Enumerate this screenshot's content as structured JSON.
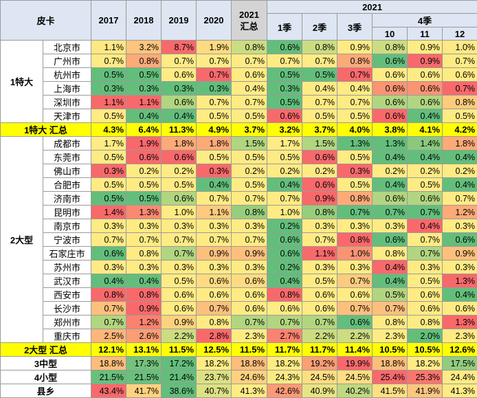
{
  "chart_data": {
    "type": "table",
    "header": {
      "corner": "皮卡",
      "years": [
        "2017",
        "2018",
        "2019",
        "2020"
      ],
      "summary_label": [
        "2021",
        "汇总"
      ],
      "top_2021": "2021",
      "quarters": [
        "1季",
        "2季",
        "3季"
      ],
      "q4": "4季",
      "months": [
        "10",
        "11",
        "12"
      ]
    },
    "groups": [
      {
        "name": "1特大",
        "rows": [
          {
            "city": "北京市",
            "values": [
              "1.1%",
              "3.2%",
              "8.7%",
              "1.9%",
              "0.8%",
              "0.6%",
              "0.8%",
              "0.9%",
              "0.8%",
              "0.9%",
              "1.0%"
            ]
          },
          {
            "city": "广州市",
            "values": [
              "0.7%",
              "0.8%",
              "0.7%",
              "0.7%",
              "0.7%",
              "0.7%",
              "0.7%",
              "0.8%",
              "0.6%",
              "0.9%",
              "0.7%"
            ]
          },
          {
            "city": "杭州市",
            "values": [
              "0.5%",
              "0.5%",
              "0.6%",
              "0.7%",
              "0.6%",
              "0.5%",
              "0.5%",
              "0.7%",
              "0.6%",
              "0.6%",
              "0.6%"
            ]
          },
          {
            "city": "上海市",
            "values": [
              "0.3%",
              "0.3%",
              "0.3%",
              "0.3%",
              "0.4%",
              "0.3%",
              "0.4%",
              "0.4%",
              "0.6%",
              "0.6%",
              "0.7%"
            ]
          },
          {
            "city": "深圳市",
            "values": [
              "1.1%",
              "1.1%",
              "0.6%",
              "0.7%",
              "0.7%",
              "0.5%",
              "0.7%",
              "0.7%",
              "0.6%",
              "0.6%",
              "0.8%"
            ]
          },
          {
            "city": "天津市",
            "values": [
              "0.5%",
              "0.4%",
              "0.4%",
              "0.5%",
              "0.5%",
              "0.6%",
              "0.5%",
              "0.5%",
              "0.6%",
              "0.4%",
              "0.5%"
            ]
          }
        ],
        "subtotal": {
          "label": "1特大 汇总",
          "values": [
            "4.3%",
            "6.4%",
            "11.3%",
            "4.9%",
            "3.7%",
            "3.2%",
            "3.7%",
            "4.0%",
            "3.8%",
            "4.1%",
            "4.2%"
          ]
        }
      },
      {
        "name": "2大型",
        "rows": [
          {
            "city": "成都市",
            "values": [
              "1.7%",
              "1.9%",
              "1.8%",
              "1.8%",
              "1.5%",
              "1.7%",
              "1.5%",
              "1.3%",
              "1.3%",
              "1.4%",
              "1.8%"
            ]
          },
          {
            "city": "东莞市",
            "values": [
              "0.5%",
              "0.6%",
              "0.6%",
              "0.5%",
              "0.5%",
              "0.5%",
              "0.6%",
              "0.5%",
              "0.4%",
              "0.4%",
              "0.4%"
            ]
          },
          {
            "city": "佛山市",
            "values": [
              "0.3%",
              "0.2%",
              "0.2%",
              "0.3%",
              "0.2%",
              "0.2%",
              "0.2%",
              "0.3%",
              "0.2%",
              "0.2%",
              "0.2%"
            ]
          },
          {
            "city": "合肥市",
            "values": [
              "0.5%",
              "0.5%",
              "0.5%",
              "0.4%",
              "0.5%",
              "0.4%",
              "0.6%",
              "0.5%",
              "0.4%",
              "0.5%",
              "0.4%"
            ]
          },
          {
            "city": "济南市",
            "values": [
              "0.5%",
              "0.5%",
              "0.6%",
              "0.7%",
              "0.7%",
              "0.7%",
              "0.9%",
              "0.8%",
              "0.6%",
              "0.6%",
              "0.7%"
            ]
          },
          {
            "city": "昆明市",
            "values": [
              "1.4%",
              "1.3%",
              "1.0%",
              "1.1%",
              "0.8%",
              "1.0%",
              "0.8%",
              "0.7%",
              "0.7%",
              "0.7%",
              "1.2%"
            ]
          },
          {
            "city": "南京市",
            "values": [
              "0.3%",
              "0.3%",
              "0.3%",
              "0.3%",
              "0.3%",
              "0.2%",
              "0.3%",
              "0.3%",
              "0.3%",
              "0.4%",
              "0.3%"
            ]
          },
          {
            "city": "宁波市",
            "values": [
              "0.7%",
              "0.7%",
              "0.7%",
              "0.7%",
              "0.7%",
              "0.6%",
              "0.7%",
              "0.8%",
              "0.6%",
              "0.7%",
              "0.6%"
            ]
          },
          {
            "city": "石家庄市",
            "values": [
              "0.6%",
              "0.8%",
              "0.7%",
              "0.9%",
              "0.9%",
              "0.6%",
              "1.1%",
              "1.0%",
              "0.8%",
              "0.7%",
              "0.9%"
            ]
          },
          {
            "city": "苏州市",
            "values": [
              "0.3%",
              "0.3%",
              "0.3%",
              "0.3%",
              "0.3%",
              "0.2%",
              "0.3%",
              "0.3%",
              "0.4%",
              "0.3%",
              "0.3%"
            ]
          },
          {
            "city": "武汉市",
            "values": [
              "0.4%",
              "0.4%",
              "0.5%",
              "0.6%",
              "0.6%",
              "0.4%",
              "0.5%",
              "0.7%",
              "0.4%",
              "0.5%",
              "1.3%"
            ]
          },
          {
            "city": "西安市",
            "values": [
              "0.8%",
              "0.8%",
              "0.6%",
              "0.6%",
              "0.6%",
              "0.8%",
              "0.6%",
              "0.6%",
              "0.5%",
              "0.6%",
              "0.4%"
            ]
          },
          {
            "city": "长沙市",
            "values": [
              "0.7%",
              "0.9%",
              "0.6%",
              "0.7%",
              "0.6%",
              "0.6%",
              "0.6%",
              "0.7%",
              "0.7%",
              "0.6%",
              "0.6%"
            ]
          },
          {
            "city": "郑州市",
            "values": [
              "0.7%",
              "1.2%",
              "0.9%",
              "0.8%",
              "0.7%",
              "0.7%",
              "0.7%",
              "0.6%",
              "0.8%",
              "0.8%",
              "1.3%"
            ]
          },
          {
            "city": "重庆市",
            "values": [
              "2.5%",
              "2.6%",
              "2.2%",
              "2.8%",
              "2.3%",
              "2.7%",
              "2.2%",
              "2.2%",
              "2.3%",
              "2.0%",
              "2.3%"
            ]
          }
        ],
        "subtotal": {
          "label": "2大型 汇总",
          "values": [
            "12.1%",
            "13.1%",
            "11.5%",
            "12.5%",
            "11.5%",
            "11.7%",
            "11.7%",
            "11.4%",
            "10.5%",
            "10.5%",
            "12.6%"
          ]
        }
      }
    ],
    "other_rows": [
      {
        "label": "3中型",
        "values": [
          "18.8%",
          "17.3%",
          "17.2%",
          "18.2%",
          "18.8%",
          "18.2%",
          "19.2%",
          "19.9%",
          "18.8%",
          "18.2%",
          "17.5%"
        ]
      },
      {
        "label": "4小型",
        "values": [
          "21.5%",
          "21.5%",
          "21.4%",
          "23.7%",
          "24.6%",
          "24.3%",
          "24.5%",
          "24.5%",
          "25.4%",
          "25.3%",
          "24.4%"
        ]
      },
      {
        "label": "县乡",
        "values": [
          "43.4%",
          "41.7%",
          "38.6%",
          "40.7%",
          "41.3%",
          "42.6%",
          "40.9%",
          "40.2%",
          "41.5%",
          "41.9%",
          "41.3%"
        ]
      }
    ],
    "colors": {
      "low": "#63be7b",
      "mid": "#ffeb84",
      "high": "#f8696b",
      "subtotal_bg": "#ffff00",
      "header_bg": "#dde6f2",
      "summary_header_bg": "#d4d4d4"
    }
  }
}
